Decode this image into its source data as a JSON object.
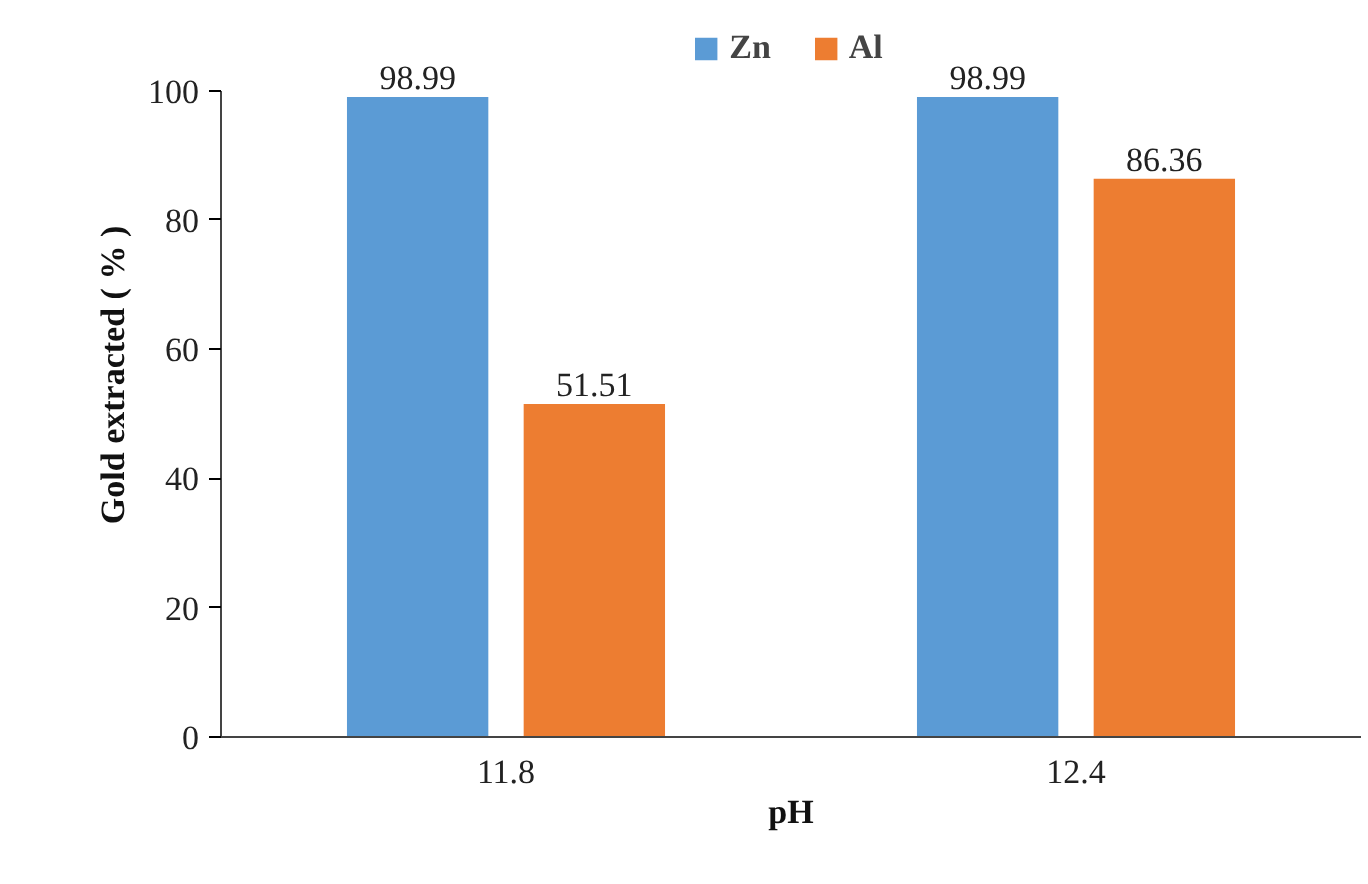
{
  "chart_data": {
    "type": "bar",
    "xlabel": "pH",
    "ylabel": "Gold extracted ( % )",
    "categories": [
      "11.8",
      "12.4"
    ],
    "series": [
      {
        "name": "Zn",
        "color": "#5b9bd5",
        "values": [
          98.99,
          98.99
        ]
      },
      {
        "name": "Al",
        "color": "#ed7d31",
        "values": [
          51.51,
          86.36
        ]
      }
    ],
    "ylim": [
      0,
      100
    ],
    "yticks": [
      0,
      20,
      40,
      60,
      80,
      100
    ],
    "grid": false,
    "legend": "top",
    "data_labels": true
  }
}
